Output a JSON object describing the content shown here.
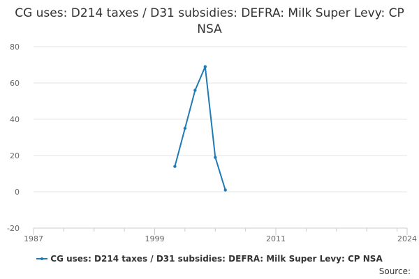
{
  "title": "CG uses: D214 taxes / D31 subsidies: DEFRA: Milk Super Levy: CP NSA",
  "source_label": "Source:",
  "colors": {
    "series": "#1f7bb5",
    "grid": "#e6e6e6",
    "axis_text": "#666666"
  },
  "chart_data": {
    "type": "line",
    "title": "CG uses: D214 taxes / D31 subsidies: DEFRA: Milk Super Levy: CP NSA",
    "xlabel": "",
    "ylabel": "",
    "xlim": [
      1987,
      2024
    ],
    "ylim": [
      -20,
      80
    ],
    "x_ticks": [
      1987,
      1999,
      2011,
      2024
    ],
    "y_ticks": [
      -20,
      0,
      20,
      40,
      60,
      80
    ],
    "grid": "horizontal",
    "legend_position": "bottom",
    "series": [
      {
        "name": "CG uses: D214 taxes / D31 subsidies: DEFRA: Milk Super Levy: CP NSA",
        "x": [
          2001,
          2002,
          2003,
          2004,
          2005,
          2006
        ],
        "y": [
          14,
          35,
          56,
          69,
          19,
          1
        ]
      }
    ]
  }
}
